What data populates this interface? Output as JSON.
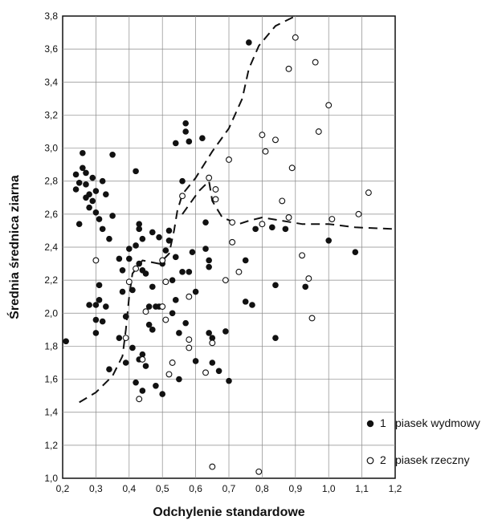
{
  "chart_data": {
    "type": "scatter",
    "title": "",
    "xlabel": "Odchylenie standardowe",
    "ylabel": "Średnia średnica ziarna",
    "xlim": [
      0.2,
      1.2
    ],
    "ylim": [
      1.0,
      3.8
    ],
    "x_ticks": [
      "0,2",
      "0,3",
      "0,4",
      "0,5",
      "0,6",
      "0,7",
      "0,8",
      "0,9",
      "1,0",
      "1,1",
      "1,2"
    ],
    "y_ticks": [
      "1,0",
      "1,2",
      "1,4",
      "1,6",
      "1,8",
      "2,0",
      "2,2",
      "2,4",
      "2,6",
      "2,8",
      "3,0",
      "3,2",
      "3,4",
      "3,6",
      "3,8"
    ],
    "grid": true,
    "legend_position": "bottom-right",
    "series": [
      {
        "number": "1",
        "name": "piasek wydmowy",
        "marker": "filled-circle",
        "color": "#111111",
        "points": [
          [
            0.21,
            1.83
          ],
          [
            0.24,
            2.84
          ],
          [
            0.24,
            2.75
          ],
          [
            0.25,
            2.79
          ],
          [
            0.25,
            2.54
          ],
          [
            0.26,
            2.97
          ],
          [
            0.26,
            2.88
          ],
          [
            0.27,
            2.85
          ],
          [
            0.27,
            2.78
          ],
          [
            0.27,
            2.7
          ],
          [
            0.28,
            2.64
          ],
          [
            0.28,
            2.72
          ],
          [
            0.28,
            2.05
          ],
          [
            0.29,
            2.82
          ],
          [
            0.29,
            2.68
          ],
          [
            0.3,
            2.74
          ],
          [
            0.3,
            2.61
          ],
          [
            0.3,
            2.05
          ],
          [
            0.3,
            1.96
          ],
          [
            0.3,
            1.88
          ],
          [
            0.31,
            2.57
          ],
          [
            0.31,
            2.17
          ],
          [
            0.31,
            2.08
          ],
          [
            0.32,
            2.51
          ],
          [
            0.32,
            1.95
          ],
          [
            0.32,
            2.8
          ],
          [
            0.33,
            2.72
          ],
          [
            0.33,
            2.04
          ],
          [
            0.34,
            2.45
          ],
          [
            0.34,
            1.66
          ],
          [
            0.35,
            2.96
          ],
          [
            0.35,
            2.59
          ],
          [
            0.37,
            2.33
          ],
          [
            0.37,
            1.85
          ],
          [
            0.38,
            2.26
          ],
          [
            0.38,
            2.13
          ],
          [
            0.39,
            1.98
          ],
          [
            0.39,
            1.7
          ],
          [
            0.4,
            2.39
          ],
          [
            0.4,
            2.33
          ],
          [
            0.41,
            2.14
          ],
          [
            0.41,
            1.79
          ],
          [
            0.42,
            2.86
          ],
          [
            0.42,
            2.41
          ],
          [
            0.42,
            1.58
          ],
          [
            0.43,
            2.54
          ],
          [
            0.43,
            2.51
          ],
          [
            0.43,
            2.3
          ],
          [
            0.43,
            1.72
          ],
          [
            0.44,
            2.45
          ],
          [
            0.44,
            2.26
          ],
          [
            0.44,
            1.75
          ],
          [
            0.44,
            1.53
          ],
          [
            0.45,
            2.24
          ],
          [
            0.45,
            1.68
          ],
          [
            0.46,
            2.04
          ],
          [
            0.46,
            1.93
          ],
          [
            0.47,
            2.49
          ],
          [
            0.47,
            2.16
          ],
          [
            0.47,
            1.9
          ],
          [
            0.48,
            2.04
          ],
          [
            0.48,
            1.56
          ],
          [
            0.49,
            2.46
          ],
          [
            0.49,
            2.04
          ],
          [
            0.5,
            2.3
          ],
          [
            0.5,
            1.51
          ],
          [
            0.51,
            2.38
          ],
          [
            0.52,
            2.5
          ],
          [
            0.52,
            2.44
          ],
          [
            0.53,
            2.2
          ],
          [
            0.53,
            2.0
          ],
          [
            0.54,
            3.03
          ],
          [
            0.54,
            2.34
          ],
          [
            0.54,
            2.08
          ],
          [
            0.55,
            1.88
          ],
          [
            0.55,
            1.6
          ],
          [
            0.56,
            2.8
          ],
          [
            0.56,
            2.25
          ],
          [
            0.57,
            3.15
          ],
          [
            0.57,
            3.1
          ],
          [
            0.57,
            1.94
          ],
          [
            0.58,
            3.04
          ],
          [
            0.58,
            2.25
          ],
          [
            0.59,
            2.37
          ],
          [
            0.6,
            2.13
          ],
          [
            0.6,
            1.71
          ],
          [
            0.62,
            3.06
          ],
          [
            0.63,
            2.55
          ],
          [
            0.63,
            2.39
          ],
          [
            0.64,
            2.32
          ],
          [
            0.64,
            2.28
          ],
          [
            0.64,
            1.88
          ],
          [
            0.65,
            1.7
          ],
          [
            0.65,
            1.85
          ],
          [
            0.67,
            1.65
          ],
          [
            0.69,
            1.89
          ],
          [
            0.7,
            1.59
          ],
          [
            0.75,
            2.32
          ],
          [
            0.75,
            2.07
          ],
          [
            0.76,
            3.64
          ],
          [
            0.77,
            2.05
          ],
          [
            0.78,
            2.51
          ],
          [
            0.83,
            2.52
          ],
          [
            0.84,
            2.17
          ],
          [
            0.84,
            1.85
          ],
          [
            0.87,
            2.51
          ],
          [
            0.93,
            2.16
          ],
          [
            1.0,
            2.44
          ],
          [
            1.08,
            2.37
          ]
        ]
      },
      {
        "number": "2",
        "name": "piasek rzeczny",
        "marker": "open-circle",
        "color": "#111111",
        "points": [
          [
            0.3,
            2.32
          ],
          [
            0.39,
            1.85
          ],
          [
            0.4,
            2.19
          ],
          [
            0.42,
            2.27
          ],
          [
            0.43,
            1.48
          ],
          [
            0.44,
            1.72
          ],
          [
            0.45,
            2.01
          ],
          [
            0.5,
            2.32
          ],
          [
            0.5,
            2.04
          ],
          [
            0.51,
            2.19
          ],
          [
            0.51,
            1.96
          ],
          [
            0.52,
            1.63
          ],
          [
            0.53,
            1.7
          ],
          [
            0.56,
            2.71
          ],
          [
            0.58,
            1.84
          ],
          [
            0.58,
            1.79
          ],
          [
            0.58,
            2.1
          ],
          [
            0.63,
            1.64
          ],
          [
            0.64,
            2.82
          ],
          [
            0.65,
            1.82
          ],
          [
            0.65,
            1.07
          ],
          [
            0.66,
            2.69
          ],
          [
            0.66,
            2.75
          ],
          [
            0.69,
            2.2
          ],
          [
            0.7,
            2.93
          ],
          [
            0.71,
            2.55
          ],
          [
            0.71,
            2.43
          ],
          [
            0.73,
            2.25
          ],
          [
            0.79,
            1.04
          ],
          [
            0.8,
            2.54
          ],
          [
            0.8,
            3.08
          ],
          [
            0.81,
            2.98
          ],
          [
            0.84,
            3.05
          ],
          [
            0.86,
            2.68
          ],
          [
            0.88,
            3.48
          ],
          [
            0.88,
            2.58
          ],
          [
            0.89,
            2.88
          ],
          [
            0.9,
            3.67
          ],
          [
            0.92,
            2.35
          ],
          [
            0.94,
            2.21
          ],
          [
            0.95,
            1.97
          ],
          [
            0.96,
            3.52
          ],
          [
            0.97,
            3.1
          ],
          [
            1.0,
            3.26
          ],
          [
            1.01,
            2.57
          ],
          [
            1.09,
            2.6
          ],
          [
            1.12,
            2.73
          ]
        ]
      }
    ]
  }
}
